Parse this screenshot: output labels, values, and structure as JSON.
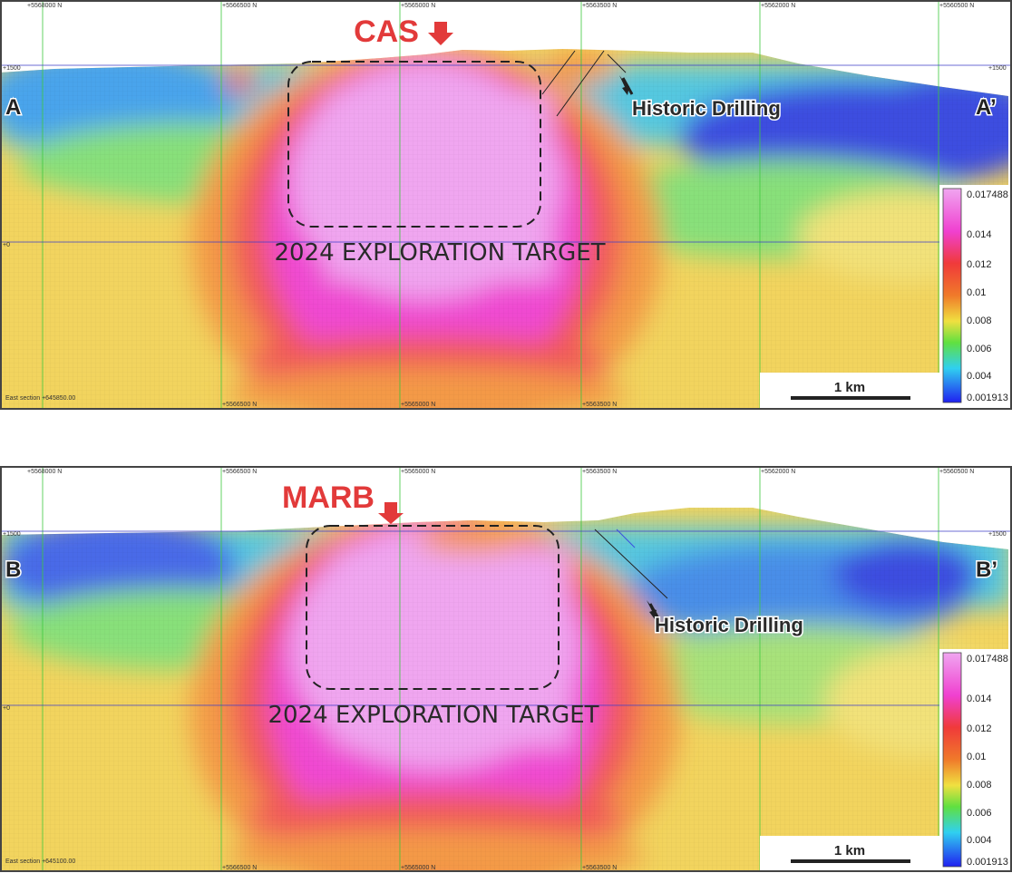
{
  "sections": [
    {
      "id": "top",
      "target_label": "CAS",
      "target_color": "#e23a3a",
      "left_label": "A",
      "right_label": "A’",
      "drilling_label": "Historic Drilling",
      "exploration_label": "2024 EXPLORATION TARGET",
      "northing_ticks": [
        "+5568000 N",
        "+5566500 N",
        "+5565000 N",
        "+5563500 N",
        "+5562000 N",
        "+5560500 N"
      ],
      "elev_labels": [
        "+1500",
        "+0",
        "+1500"
      ],
      "section_label": "East section +645850.00",
      "scale_label": "1 km",
      "legend_values": [
        "0.017488",
        "0.014",
        "0.012",
        "0.01",
        "0.008",
        "0.006",
        "0.004",
        "0.001913"
      ]
    },
    {
      "id": "bottom",
      "target_label": "MARB",
      "target_color": "#e23a3a",
      "left_label": "B",
      "right_label": "B’",
      "drilling_label": "Historic Drilling",
      "exploration_label": "2024 EXPLORATION TARGET",
      "northing_ticks": [
        "+5568000 N",
        "+5566500 N",
        "+5565000 N",
        "+5563500 N",
        "+5562000 N",
        "+5560500 N"
      ],
      "elev_labels": [
        "+1500",
        "+0",
        "+1500"
      ],
      "section_label": "East section +645100.00",
      "scale_label": "1 km",
      "legend_values": [
        "0.017488",
        "0.014",
        "0.012",
        "0.01",
        "0.008",
        "0.006",
        "0.004",
        "0.001913"
      ]
    }
  ],
  "colors": {
    "pink": "#f0a6f0",
    "magenta": "#f04ad2",
    "red": "#f25a5a",
    "orange": "#f4a24a",
    "yellow": "#f2e27a",
    "green": "#7ee07a",
    "cyan": "#66d6e8",
    "blue": "#3c4ee0",
    "grid_green": "#3cc83c",
    "grid_blue": "#3c3cc8"
  }
}
